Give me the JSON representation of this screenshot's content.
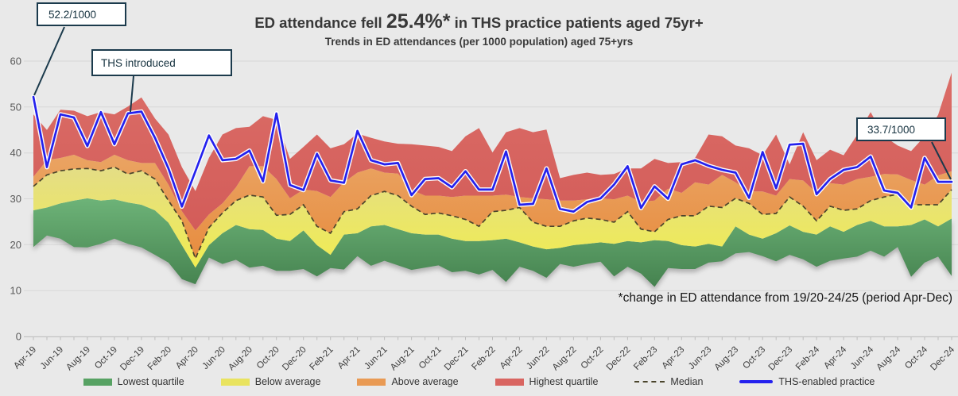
{
  "header": {
    "title_prefix": "ED attendance fell ",
    "title_pct": "25.4%*",
    "title_suffix": " in THS practice patients aged 75yr+",
    "subtitle": "Trends in ED attendances (per 1000 population) aged 75+yrs"
  },
  "note": "*change in ED attendance from 19/20-24/25 (period Apr-Dec)",
  "annotations": [
    {
      "text": "52.2/1000"
    },
    {
      "text": "THS introduced"
    },
    {
      "text": "33.7/1000"
    }
  ],
  "colors": {
    "background": "#e9e9e9",
    "grid": "#d8d8d8",
    "axis": "#c2c2c2",
    "band_lowest": "#57a263",
    "band_below": "#e9e379",
    "band_above": "#e99a54",
    "band_highest": "#d96561",
    "median_line": "#4b452c",
    "ths_line": "#2421ee",
    "callout_border": "#1b3a4c"
  },
  "chart_data": {
    "type": "area",
    "title": "ED attendance fell 25.4%* in THS practice patients aged 75yr+",
    "subtitle": "Trends in ED attendances (per 1000 population) aged 75+yrs",
    "xlabel": "",
    "ylabel": "",
    "ylim": [
      0,
      60
    ],
    "yticks": [
      0,
      10,
      20,
      30,
      40,
      50,
      60
    ],
    "grid": "horizontal",
    "legend_position": "bottom",
    "x_start": "Apr-19",
    "x_end": "Dec-24",
    "x_interval": "monthly",
    "x_tick_labels": [
      "Apr-19",
      "Jun-19",
      "Aug-19",
      "Oct-19",
      "Dec-19",
      "Feb-20",
      "Apr-20",
      "Jun-20",
      "Aug-20",
      "Oct-20",
      "Dec-20",
      "Feb-21",
      "Apr-21",
      "Jun-21",
      "Aug-21",
      "Oct-21",
      "Dec-21",
      "Feb-22",
      "Apr-22",
      "Jun-22",
      "Aug-22",
      "Oct-22",
      "Dec-22",
      "Feb-23",
      "Apr-23",
      "Jun-23",
      "Aug-23",
      "Oct-23",
      "Dec-23",
      "Feb-24",
      "Apr-24",
      "Jun-24",
      "Aug-24",
      "Oct-24",
      "Dec-24"
    ],
    "legend": [
      {
        "label": "Lowest quartile",
        "color": "#57a263",
        "type": "band"
      },
      {
        "label": "Below average",
        "color": "#e9e35f",
        "type": "band"
      },
      {
        "label": "Above average",
        "color": "#e99a54",
        "type": "band"
      },
      {
        "label": "Highest quartile",
        "color": "#d96561",
        "type": "band"
      },
      {
        "label": "Median",
        "color": "#4b452c",
        "type": "dashed-line"
      },
      {
        "label": "THS-enabled practice",
        "color": "#2421ee",
        "type": "line"
      }
    ],
    "series": {
      "band_min": [
        19.5,
        22.0,
        21.3,
        19.5,
        19.4,
        20.2,
        21.3,
        20.2,
        19.4,
        17.8,
        16.1,
        12.5,
        11.4,
        17.2,
        15.8,
        16.7,
        15.0,
        15.4,
        14.3,
        14.3,
        14.7,
        13.1,
        14.9,
        14.6,
        17.5,
        15.4,
        16.5,
        15.5,
        14.5,
        15.0,
        15.5,
        14.0,
        14.3,
        13.5,
        14.5,
        11.9,
        15.2,
        14.3,
        12.8,
        15.8,
        15.2,
        15.8,
        16.3,
        13.1,
        15.2,
        13.7,
        10.8,
        14.9,
        14.7,
        14.7,
        16.1,
        16.4,
        18.1,
        18.4,
        17.5,
        16.4,
        17.8,
        16.8,
        15.2,
        16.5,
        17.0,
        17.4,
        18.7,
        17.4,
        19.5,
        13.0,
        16.1,
        17.4,
        13.2
      ],
      "quartile_lower": [
        27.5,
        28.1,
        29.0,
        29.6,
        30.1,
        29.6,
        29.9,
        29.2,
        28.7,
        27.5,
        24.8,
        19.9,
        15.0,
        19.9,
        22.5,
        24.3,
        23.4,
        23.2,
        21.3,
        20.8,
        23.1,
        19.9,
        17.8,
        22.2,
        22.5,
        24.0,
        24.3,
        23.4,
        22.5,
        22.2,
        22.2,
        21.3,
        20.8,
        20.8,
        21.0,
        21.3,
        20.5,
        19.6,
        19.0,
        19.3,
        19.9,
        20.2,
        20.5,
        20.2,
        20.8,
        20.5,
        21.0,
        20.8,
        19.9,
        19.6,
        20.2,
        19.6,
        24.0,
        22.2,
        21.3,
        22.5,
        24.2,
        22.8,
        22.2,
        24.0,
        22.8,
        24.3,
        25.2,
        24.0,
        24.0,
        24.3,
        25.5,
        24.0,
        25.7
      ],
      "median": [
        32.7,
        35.2,
        36.1,
        36.5,
        36.6,
        36.1,
        36.9,
        35.4,
        36.1,
        34.3,
        29.6,
        25.2,
        17.0,
        23.7,
        26.9,
        29.6,
        30.8,
        30.4,
        26.4,
        26.6,
        28.7,
        24.0,
        22.5,
        27.2,
        27.8,
        30.7,
        31.6,
        30.7,
        28.4,
        26.6,
        26.9,
        26.3,
        25.5,
        24.0,
        27.2,
        27.5,
        28.1,
        24.9,
        24.0,
        24.0,
        25.2,
        25.8,
        25.5,
        24.9,
        27.2,
        23.4,
        22.8,
        25.5,
        26.3,
        26.3,
        28.4,
        28.1,
        30.1,
        29.0,
        26.6,
        26.8,
        30.4,
        28.4,
        25.2,
        28.4,
        27.5,
        27.8,
        29.6,
        30.4,
        31.0,
        28.7,
        28.7,
        28.7,
        32.0
      ],
      "quartile_upper": [
        34.8,
        38.4,
        38.9,
        39.6,
        38.4,
        38.0,
        39.6,
        38.4,
        37.8,
        37.8,
        33.1,
        27.3,
        23.1,
        26.6,
        29.0,
        32.5,
        37.1,
        37.1,
        34.3,
        30.1,
        32.0,
        31.7,
        30.4,
        33.6,
        35.7,
        36.6,
        35.7,
        35.5,
        31.9,
        30.7,
        30.7,
        30.4,
        30.7,
        30.7,
        30.7,
        30.9,
        30.4,
        30.1,
        29.9,
        29.6,
        29.6,
        29.9,
        30.1,
        29.9,
        30.7,
        29.3,
        29.6,
        32.2,
        31.3,
        33.6,
        33.1,
        35.2,
        33.6,
        31.6,
        31.6,
        30.7,
        34.3,
        34.0,
        31.3,
        33.4,
        33.1,
        34.3,
        34.8,
        35.4,
        35.3,
        34.1,
        33.1,
        35.1,
        36.0
      ],
      "band_max": [
        48.4,
        45.0,
        49.4,
        49.2,
        48.0,
        48.9,
        48.4,
        50.1,
        52.1,
        47.5,
        44.0,
        36.9,
        31.7,
        38.9,
        44.0,
        45.4,
        45.7,
        48.0,
        47.2,
        38.7,
        41.3,
        44.0,
        41.0,
        41.9,
        44.2,
        43.3,
        42.5,
        42.0,
        41.9,
        41.6,
        41.3,
        40.4,
        43.6,
        45.4,
        40.1,
        44.5,
        45.4,
        44.5,
        45.1,
        34.5,
        35.2,
        35.7,
        35.2,
        35.4,
        36.6,
        36.6,
        38.7,
        37.8,
        38.0,
        38.9,
        44.0,
        43.6,
        41.6,
        41.0,
        39.5,
        44.0,
        37.5,
        44.5,
        38.4,
        40.7,
        39.5,
        43.9,
        48.9,
        43.6,
        41.6,
        40.4,
        43.6,
        48.3,
        57.5
      ],
      "ths_practice": [
        52.2,
        36.9,
        48.4,
        47.7,
        41.5,
        48.9,
        41.9,
        48.6,
        49.0,
        43.3,
        36.6,
        28.3,
        36.0,
        43.8,
        38.4,
        38.7,
        40.5,
        33.8,
        48.6,
        33.0,
        31.9,
        39.8,
        34.0,
        33.5,
        44.8,
        38.4,
        37.5,
        37.8,
        30.8,
        34.3,
        34.5,
        32.5,
        36.0,
        32.0,
        32.0,
        40.3,
        28.7,
        28.9,
        36.6,
        27.8,
        27.2,
        29.3,
        30.1,
        33.1,
        37.1,
        28.0,
        32.7,
        30.0,
        37.5,
        38.4,
        37.2,
        36.3,
        35.7,
        30.2,
        40.2,
        32.3,
        41.8,
        42.0,
        31.0,
        34.3,
        36.3,
        36.9,
        39.2,
        31.8,
        31.3,
        28.1,
        38.9,
        33.7,
        33.7
      ]
    },
    "annotated_points": [
      {
        "label": "52.2/1000",
        "series": "ths_practice",
        "x": "Apr-19",
        "value": 52.2
      },
      {
        "label": "THS introduced",
        "series": "ths_practice",
        "x": "Nov-19"
      },
      {
        "label": "33.7/1000",
        "series": "ths_practice",
        "x": "Dec-24",
        "value": 33.7
      }
    ]
  }
}
